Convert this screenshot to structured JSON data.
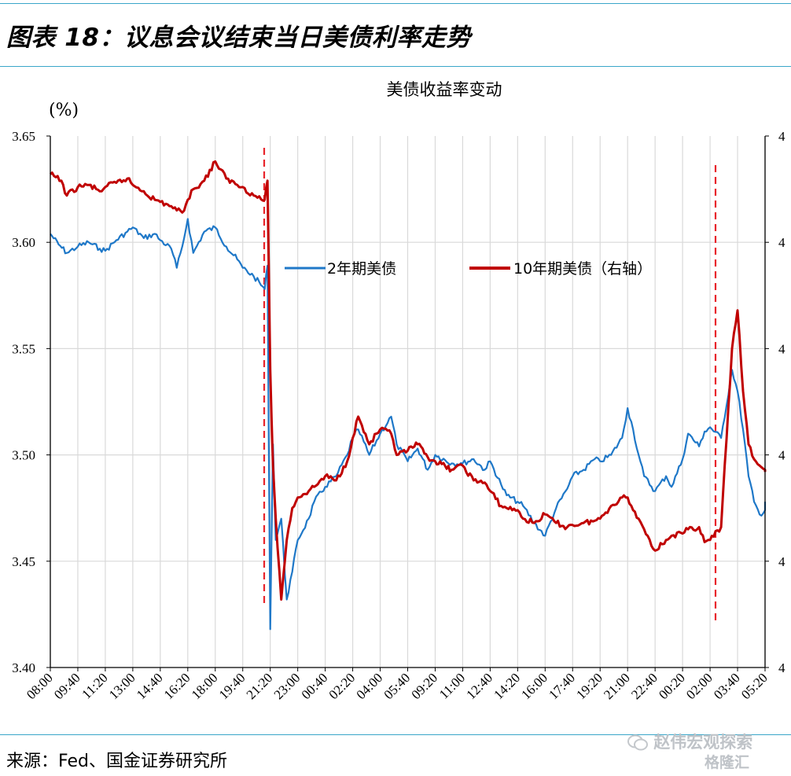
{
  "figure": {
    "title": "图表 18：议息会议结束当日美债利率走势",
    "source": "来源：Fed、国金证券研究所",
    "watermark": "赵伟宏观探索",
    "watermark2": "格隆汇",
    "watermark_icon": "wechat-icon"
  },
  "chart_data": {
    "type": "line",
    "title": "美债收益率变动",
    "ylabel": "(%)",
    "ylim": [
      3.4,
      3.65
    ],
    "yticks": [
      "3.65",
      "3.60",
      "3.55",
      "3.50",
      "3.45",
      "3.40"
    ],
    "y2ticks": [
      "4",
      "4",
      "4",
      "4",
      "4",
      "4"
    ],
    "grid": true,
    "legend_position": "top-center",
    "x_tick_labels": [
      "08:00",
      "09:40",
      "11:20",
      "13:00",
      "14:40",
      "16:20",
      "18:00",
      "19:40",
      "21:20",
      "23:00",
      "00:40",
      "02:20",
      "04:00",
      "05:40",
      "09:20",
      "11:00",
      "12:40",
      "14:20",
      "16:00",
      "17:40",
      "19:20",
      "21:00",
      "22:40",
      "00:20",
      "02:00",
      "03:40",
      "05:20"
    ],
    "event_markers": [
      "21:20",
      "03:20"
    ],
    "series": [
      {
        "name": "2年期美债",
        "axis": "left",
        "color": "#1f78c8",
        "points": [
          [
            "08:00",
            3.604
          ],
          [
            "08:30",
            3.599
          ],
          [
            "09:00",
            3.595
          ],
          [
            "09:40",
            3.598
          ],
          [
            "10:20",
            3.6
          ],
          [
            "11:00",
            3.597
          ],
          [
            "11:20",
            3.596
          ],
          [
            "12:00",
            3.601
          ],
          [
            "12:40",
            3.605
          ],
          [
            "13:00",
            3.607
          ],
          [
            "13:40",
            3.602
          ],
          [
            "14:20",
            3.604
          ],
          [
            "14:40",
            3.601
          ],
          [
            "15:20",
            3.597
          ],
          [
            "15:40",
            3.588
          ],
          [
            "16:00",
            3.598
          ],
          [
            "16:20",
            3.611
          ],
          [
            "16:40",
            3.595
          ],
          [
            "17:20",
            3.605
          ],
          [
            "18:00",
            3.607
          ],
          [
            "18:40",
            3.598
          ],
          [
            "19:20",
            3.592
          ],
          [
            "19:40",
            3.588
          ],
          [
            "20:20",
            3.584
          ],
          [
            "21:00",
            3.578
          ],
          [
            "21:10",
            3.589
          ],
          [
            "21:20",
            3.418
          ],
          [
            "21:30",
            3.505
          ],
          [
            "21:40",
            3.46
          ],
          [
            "22:00",
            3.47
          ],
          [
            "22:20",
            3.432
          ],
          [
            "22:40",
            3.445
          ],
          [
            "23:00",
            3.46
          ],
          [
            "23:40",
            3.47
          ],
          [
            "00:00",
            3.478
          ],
          [
            "00:40",
            3.485
          ],
          [
            "01:20",
            3.49
          ],
          [
            "02:00",
            3.5
          ],
          [
            "02:20",
            3.508
          ],
          [
            "02:40",
            3.512
          ],
          [
            "03:20",
            3.5
          ],
          [
            "04:00",
            3.51
          ],
          [
            "04:40",
            3.518
          ],
          [
            "05:00",
            3.505
          ],
          [
            "05:40",
            3.497
          ],
          [
            "07:00",
            3.503
          ],
          [
            "08:20",
            3.493
          ],
          [
            "09:20",
            3.5
          ],
          [
            "10:20",
            3.496
          ],
          [
            "11:00",
            3.496
          ],
          [
            "11:40",
            3.498
          ],
          [
            "12:20",
            3.493
          ],
          [
            "12:40",
            3.497
          ],
          [
            "13:20",
            3.486
          ],
          [
            "13:40",
            3.481
          ],
          [
            "14:20",
            3.478
          ],
          [
            "14:40",
            3.476
          ],
          [
            "15:20",
            3.468
          ],
          [
            "16:00",
            3.462
          ],
          [
            "16:40",
            3.475
          ],
          [
            "17:20",
            3.484
          ],
          [
            "17:40",
            3.49
          ],
          [
            "18:20",
            3.493
          ],
          [
            "19:00",
            3.498
          ],
          [
            "19:20",
            3.497
          ],
          [
            "20:00",
            3.5
          ],
          [
            "20:40",
            3.508
          ],
          [
            "21:00",
            3.522
          ],
          [
            "21:20",
            3.512
          ],
          [
            "21:40",
            3.5
          ],
          [
            "22:00",
            3.49
          ],
          [
            "22:40",
            3.483
          ],
          [
            "23:20",
            3.49
          ],
          [
            "23:40",
            3.485
          ],
          [
            "00:20",
            3.498
          ],
          [
            "00:40",
            3.51
          ],
          [
            "01:20",
            3.504
          ],
          [
            "01:40",
            3.511
          ],
          [
            "02:00",
            3.513
          ],
          [
            "02:40",
            3.508
          ],
          [
            "03:20",
            3.54
          ],
          [
            "03:40",
            3.53
          ],
          [
            "04:00",
            3.512
          ],
          [
            "04:20",
            3.49
          ],
          [
            "04:40",
            3.478
          ],
          [
            "05:00",
            3.472
          ],
          [
            "05:20",
            3.474
          ],
          [
            "06:00",
            3.478
          ]
        ]
      },
      {
        "name": "10年期美债（右轴）",
        "axis": "right",
        "color": "#c00000",
        "points": [
          [
            "08:00",
            3.632
          ],
          [
            "08:40",
            3.629
          ],
          [
            "09:00",
            3.622
          ],
          [
            "09:40",
            3.626
          ],
          [
            "10:20",
            3.627
          ],
          [
            "11:00",
            3.624
          ],
          [
            "11:20",
            3.626
          ],
          [
            "12:00",
            3.628
          ],
          [
            "12:40",
            3.63
          ],
          [
            "13:00",
            3.627
          ],
          [
            "13:40",
            3.624
          ],
          [
            "14:20",
            3.62
          ],
          [
            "14:40",
            3.619
          ],
          [
            "15:20",
            3.617
          ],
          [
            "15:40",
            3.615
          ],
          [
            "16:00",
            3.614
          ],
          [
            "16:20",
            3.62
          ],
          [
            "16:40",
            3.625
          ],
          [
            "17:20",
            3.629
          ],
          [
            "18:00",
            3.638
          ],
          [
            "18:40",
            3.63
          ],
          [
            "19:20",
            3.627
          ],
          [
            "19:40",
            3.626
          ],
          [
            "20:20",
            3.622
          ],
          [
            "21:00",
            3.62
          ],
          [
            "21:10",
            3.629
          ],
          [
            "21:20",
            3.54
          ],
          [
            "21:30",
            3.495
          ],
          [
            "21:40",
            3.47
          ],
          [
            "22:00",
            3.432
          ],
          [
            "22:20",
            3.46
          ],
          [
            "22:40",
            3.475
          ],
          [
            "23:00",
            3.48
          ],
          [
            "23:40",
            3.483
          ],
          [
            "00:00",
            3.485
          ],
          [
            "00:40",
            3.49
          ],
          [
            "01:20",
            3.488
          ],
          [
            "02:00",
            3.497
          ],
          [
            "02:20",
            3.508
          ],
          [
            "02:40",
            3.518
          ],
          [
            "03:20",
            3.505
          ],
          [
            "04:00",
            3.512
          ],
          [
            "04:40",
            3.51
          ],
          [
            "05:00",
            3.5
          ],
          [
            "05:40",
            3.502
          ],
          [
            "07:00",
            3.505
          ],
          [
            "08:20",
            3.499
          ],
          [
            "09:20",
            3.497
          ],
          [
            "10:20",
            3.493
          ],
          [
            "11:00",
            3.495
          ],
          [
            "11:40",
            3.488
          ],
          [
            "12:20",
            3.487
          ],
          [
            "12:40",
            3.483
          ],
          [
            "13:20",
            3.476
          ],
          [
            "13:40",
            3.475
          ],
          [
            "14:20",
            3.474
          ],
          [
            "14:40",
            3.47
          ],
          [
            "15:20",
            3.468
          ],
          [
            "16:00",
            3.472
          ],
          [
            "16:40",
            3.468
          ],
          [
            "17:20",
            3.466
          ],
          [
            "17:40",
            3.467
          ],
          [
            "18:20",
            3.468
          ],
          [
            "19:00",
            3.469
          ],
          [
            "19:20",
            3.47
          ],
          [
            "20:00",
            3.476
          ],
          [
            "20:40",
            3.48
          ],
          [
            "21:00",
            3.48
          ],
          [
            "21:20",
            3.474
          ],
          [
            "21:40",
            3.47
          ],
          [
            "22:00",
            3.465
          ],
          [
            "22:40",
            3.455
          ],
          [
            "23:20",
            3.46
          ],
          [
            "23:40",
            3.462
          ],
          [
            "00:20",
            3.463
          ],
          [
            "00:40",
            3.465
          ],
          [
            "01:20",
            3.466
          ],
          [
            "01:40",
            3.459
          ],
          [
            "02:00",
            3.46
          ],
          [
            "02:40",
            3.466
          ],
          [
            "03:20",
            3.55
          ],
          [
            "03:40",
            3.568
          ],
          [
            "04:00",
            3.53
          ],
          [
            "04:20",
            3.505
          ],
          [
            "04:40",
            3.498
          ],
          [
            "05:00",
            3.495
          ],
          [
            "05:20",
            3.493
          ],
          [
            "06:00",
            3.492
          ]
        ]
      }
    ]
  }
}
